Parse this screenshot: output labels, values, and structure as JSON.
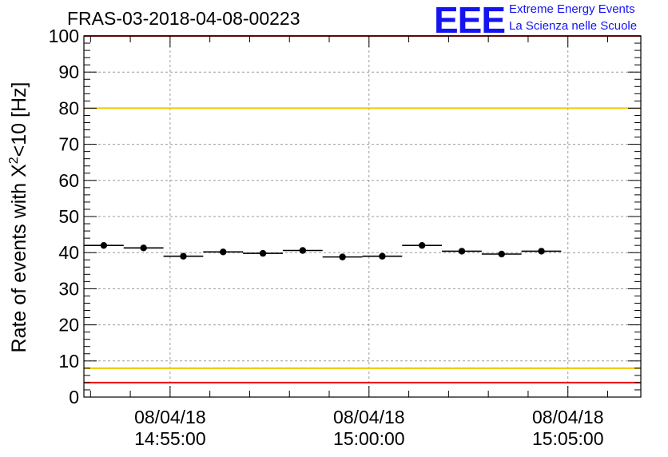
{
  "title": "FRAS-03-2018-04-08-00223",
  "logo": {
    "mark": "EEE",
    "line1": "Extreme Energy Events",
    "line2": "La Scienza nelle Scuole",
    "color": "#1414f0"
  },
  "chart_data": {
    "type": "scatter",
    "title": "FRAS-03-2018-04-08-00223",
    "ylabel": "Rate of events with X²<10 [Hz]",
    "xlabel": "",
    "ylim": [
      0,
      100
    ],
    "y_ticks": [
      0,
      10,
      20,
      30,
      40,
      50,
      60,
      70,
      80,
      90,
      100
    ],
    "x_tick_labels": [
      {
        "date": "08/04/18",
        "time": "14:55:00"
      },
      {
        "date": "08/04/18",
        "time": "15:00:00"
      },
      {
        "date": "08/04/18",
        "time": "15:05:00"
      }
    ],
    "x_range": [
      "14:52:50",
      "15:06:50"
    ],
    "grid": true,
    "series": [
      {
        "bin_width_seconds": 60,
        "points": [
          {
            "t": "14:53:20",
            "y": 42.0
          },
          {
            "t": "14:54:20",
            "y": 41.3
          },
          {
            "t": "14:55:20",
            "y": 39.0
          },
          {
            "t": "14:56:20",
            "y": 40.2
          },
          {
            "t": "14:57:20",
            "y": 39.8
          },
          {
            "t": "14:58:20",
            "y": 40.6
          },
          {
            "t": "14:59:20",
            "y": 38.8
          },
          {
            "t": "15:00:20",
            "y": 39.0
          },
          {
            "t": "15:01:20",
            "y": 42.0
          },
          {
            "t": "15:02:20",
            "y": 40.4
          },
          {
            "t": "15:03:20",
            "y": 39.6
          },
          {
            "t": "15:04:20",
            "y": 40.4
          }
        ]
      }
    ],
    "reference_lines": [
      {
        "y": 100,
        "color": "#ee1111"
      },
      {
        "y": 80,
        "color": "#f0c800"
      },
      {
        "y": 8,
        "color": "#f0c800"
      },
      {
        "y": 4,
        "color": "#ee1111"
      }
    ]
  }
}
